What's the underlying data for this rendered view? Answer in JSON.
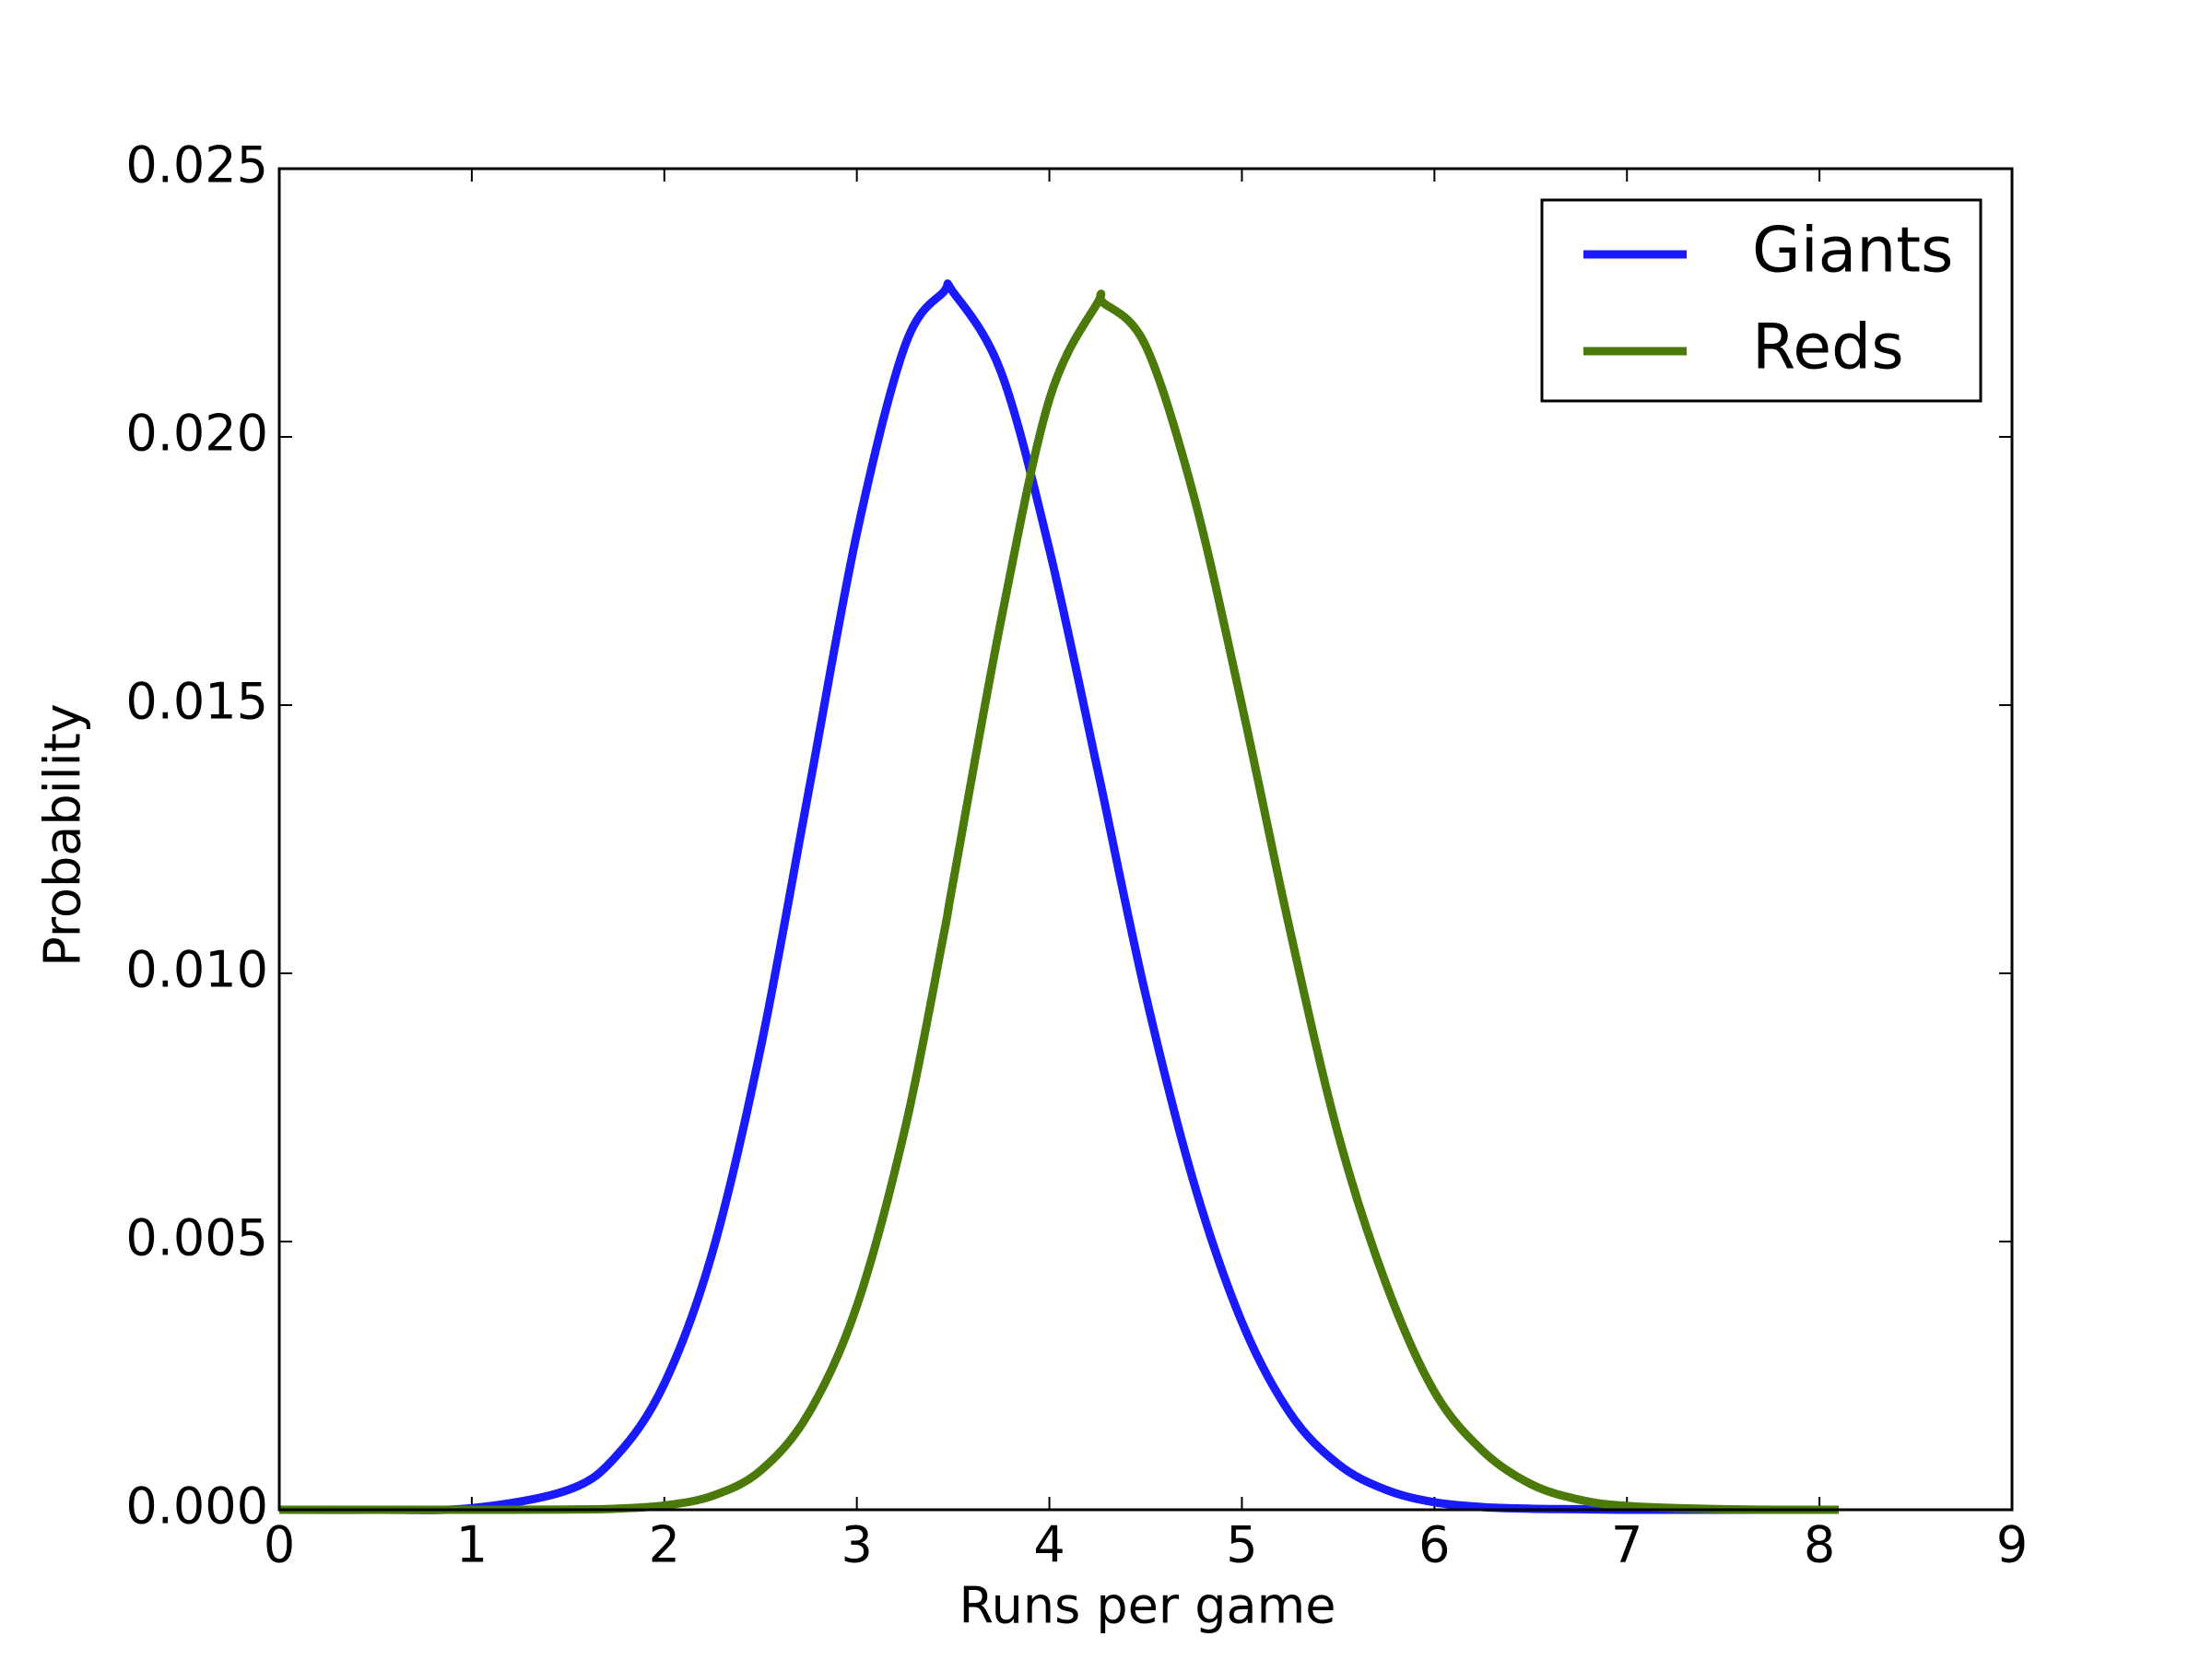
{
  "chart_data": {
    "type": "line",
    "xlabel": "Runs per game",
    "ylabel": "Probability",
    "x": [
      0,
      0.5,
      1,
      1.5,
      1.75,
      2,
      2.25,
      2.5,
      2.75,
      3,
      3.25,
      3.45,
      3.5,
      3.75,
      4,
      4.25,
      4.28,
      4.5,
      4.75,
      5,
      5.25,
      5.5,
      5.75,
      6,
      6.25,
      6.5,
      6.75,
      7,
      7.5,
      8,
      8.1
    ],
    "series": [
      {
        "name": "Giants",
        "color": "#1a1aff",
        "values": [
          0,
          0,
          3e-05,
          0.00037,
          0.001,
          0.00235,
          0.0048,
          0.0086,
          0.0134,
          0.0182,
          0.0217,
          0.0227,
          0.0227,
          0.0212,
          0.0179,
          0.0138,
          0.0133,
          0.0096,
          0.0061,
          0.0035,
          0.0018,
          0.00085,
          0.00037,
          0.00014,
          5e-05,
          2e-05,
          1e-05,
          0,
          0,
          0,
          0
        ]
      },
      {
        "name": "Reds",
        "color": "#4b7a0a",
        "values": [
          0,
          0,
          0,
          5e-06,
          2e-05,
          8e-05,
          0.00026,
          0.00073,
          0.0018,
          0.0038,
          0.0071,
          0.0107,
          0.0117,
          0.0166,
          0.0207,
          0.0225,
          0.0225,
          0.0217,
          0.0189,
          0.015,
          0.0108,
          0.007,
          0.0042,
          0.0022,
          0.0011,
          0.00048,
          0.00019,
          7e-05,
          1e-05,
          0,
          0
        ]
      }
    ],
    "xlim": [
      0,
      9
    ],
    "xticks": [
      0,
      1,
      2,
      3,
      4,
      5,
      6,
      7,
      8,
      9
    ],
    "ylim": [
      0,
      0.025
    ],
    "yticks": [
      {
        "value": 0,
        "label": "0.000"
      },
      {
        "value": 0.005,
        "label": "0.005"
      },
      {
        "value": 0.01,
        "label": "0.010"
      },
      {
        "value": 0.015,
        "label": "0.015"
      },
      {
        "value": 0.02,
        "label": "0.020"
      },
      {
        "value": 0.025,
        "label": "0.025"
      }
    ],
    "legend": "upper right"
  }
}
